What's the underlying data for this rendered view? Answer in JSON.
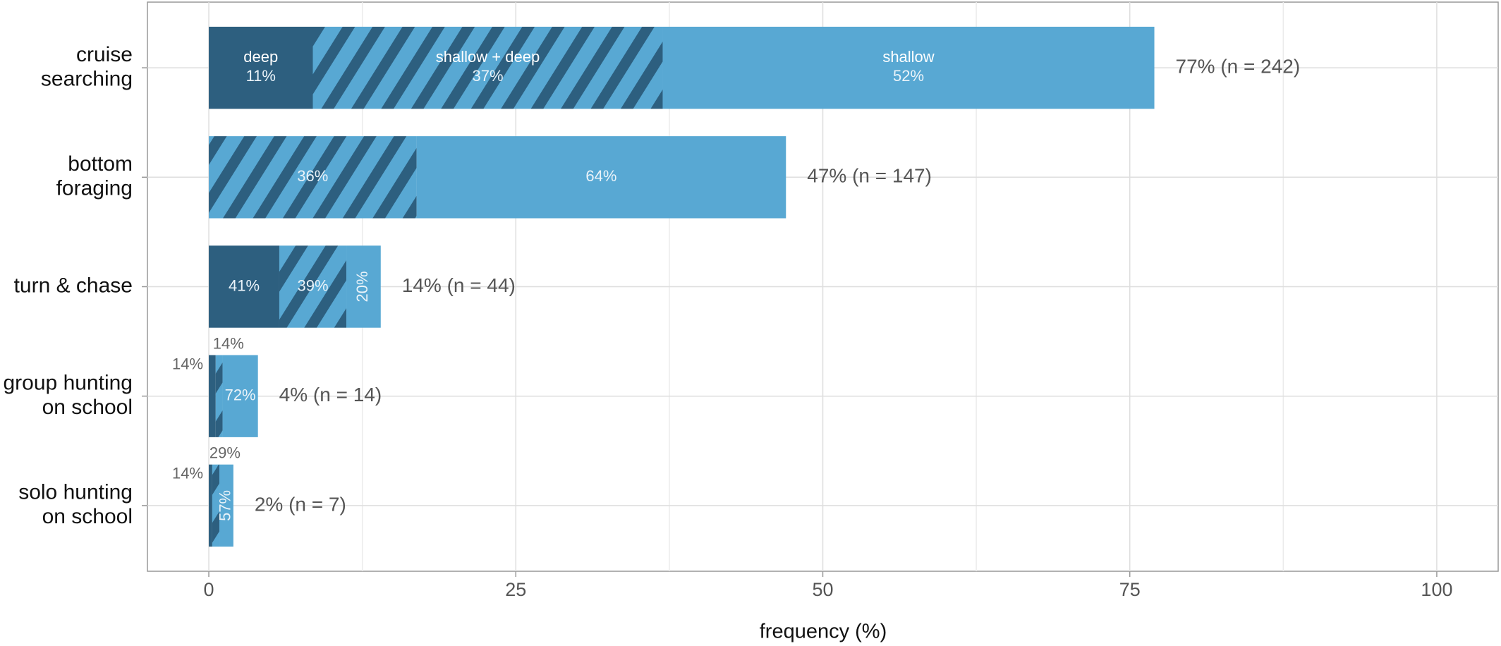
{
  "chart_data": {
    "type": "stacked_share_bar",
    "orientation": "horizontal",
    "x_label": "frequency (%)",
    "categories": [
      "cruise\nsearching",
      "bottom\nforaging",
      "turn & chase",
      "group hunting\non school",
      "solo hunting\non school"
    ],
    "values": [
      77,
      47,
      14,
      4,
      2
    ],
    "value_labels": [
      "77% (n = 242)",
      "47% (n = 147)",
      "14% (n = 44)",
      "4% (n = 14)",
      "2% (n = 7)"
    ],
    "series": [
      {
        "name": "deep",
        "color": "#2d5f7f",
        "values": [
          11,
          null,
          41,
          14,
          14
        ],
        "value_labels": [
          "11%",
          null,
          "41%",
          "14%",
          "14%"
        ]
      },
      {
        "name": "shallow + deep",
        "color": "#58a8d3",
        "hatch_color": "#2d5f7f",
        "values": [
          37,
          36,
          39,
          14,
          29
        ],
        "value_labels": [
          "37%",
          "36%",
          "39%",
          "14%",
          "29%"
        ]
      },
      {
        "name": "shallow",
        "color": "#58a8d3",
        "values": [
          52,
          64,
          20,
          72,
          57
        ],
        "value_labels": [
          "52%",
          "64%",
          "20%",
          "72%",
          "57%"
        ]
      }
    ],
    "xlim": [
      -5,
      105
    ],
    "xticks": [
      0,
      25,
      50,
      75,
      100
    ],
    "minor_xticks": [
      12.5,
      37.5,
      62.5,
      87.5
    ],
    "grid": true
  }
}
